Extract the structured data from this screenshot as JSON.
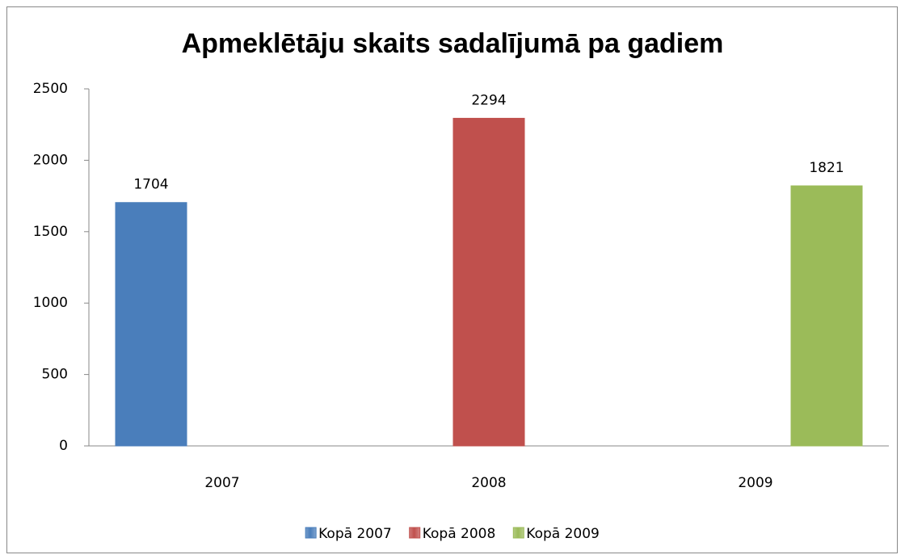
{
  "chart_data": {
    "type": "bar",
    "title": "Apmeklētāju skaits sadalījumā pa gadiem",
    "categories": [
      "2007",
      "2008",
      "2009"
    ],
    "series": [
      {
        "name": "Kopā 2007",
        "color": "#4a7ebb",
        "values": [
          1704,
          null,
          null
        ]
      },
      {
        "name": "Kopā 2008",
        "color": "#c0504d",
        "values": [
          null,
          2294,
          null
        ]
      },
      {
        "name": "Kopā 2009",
        "color": "#9bbb59",
        "values": [
          null,
          null,
          1821
        ]
      }
    ],
    "ylim": [
      0,
      2500
    ],
    "yticks": [
      0,
      500,
      1000,
      1500,
      2000,
      2500
    ],
    "grid": false,
    "legend": "bottom"
  }
}
